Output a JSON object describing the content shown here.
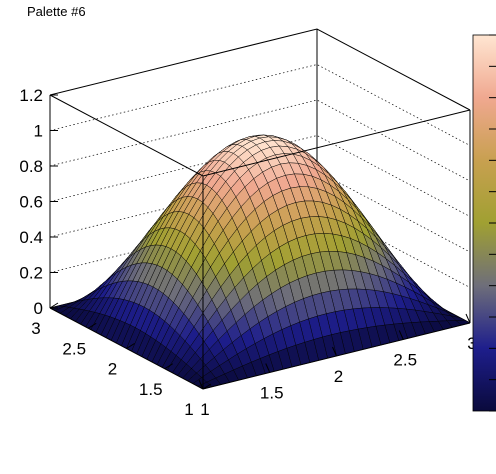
{
  "title": "Palette #6",
  "chart_data": {
    "type": "surface",
    "function": "sin(pi*(x-1)/2) * sin(pi*(y-1)/2)",
    "x_range": [
      1,
      3
    ],
    "y_range": [
      1,
      3
    ],
    "zlim": [
      0,
      1.2
    ],
    "grid_divisions": 30,
    "z_ticks": [
      "0",
      "0.2",
      "0.4",
      "0.6",
      "0.8",
      "1",
      "1.2"
    ],
    "x_ticks": [
      "1",
      "1.5",
      "2",
      "2.5",
      "3"
    ],
    "y_ticks": [
      "1",
      "1.5",
      "2",
      "2.5",
      "3"
    ],
    "grid": true,
    "palette": {
      "name": "Palette #6",
      "stops": [
        "#0a0a3c",
        "#1e1e8c",
        "#6e6e7a",
        "#a0a032",
        "#c8a050",
        "#f0a890",
        "#ffe6d2"
      ]
    },
    "colorbar_position": "right"
  }
}
